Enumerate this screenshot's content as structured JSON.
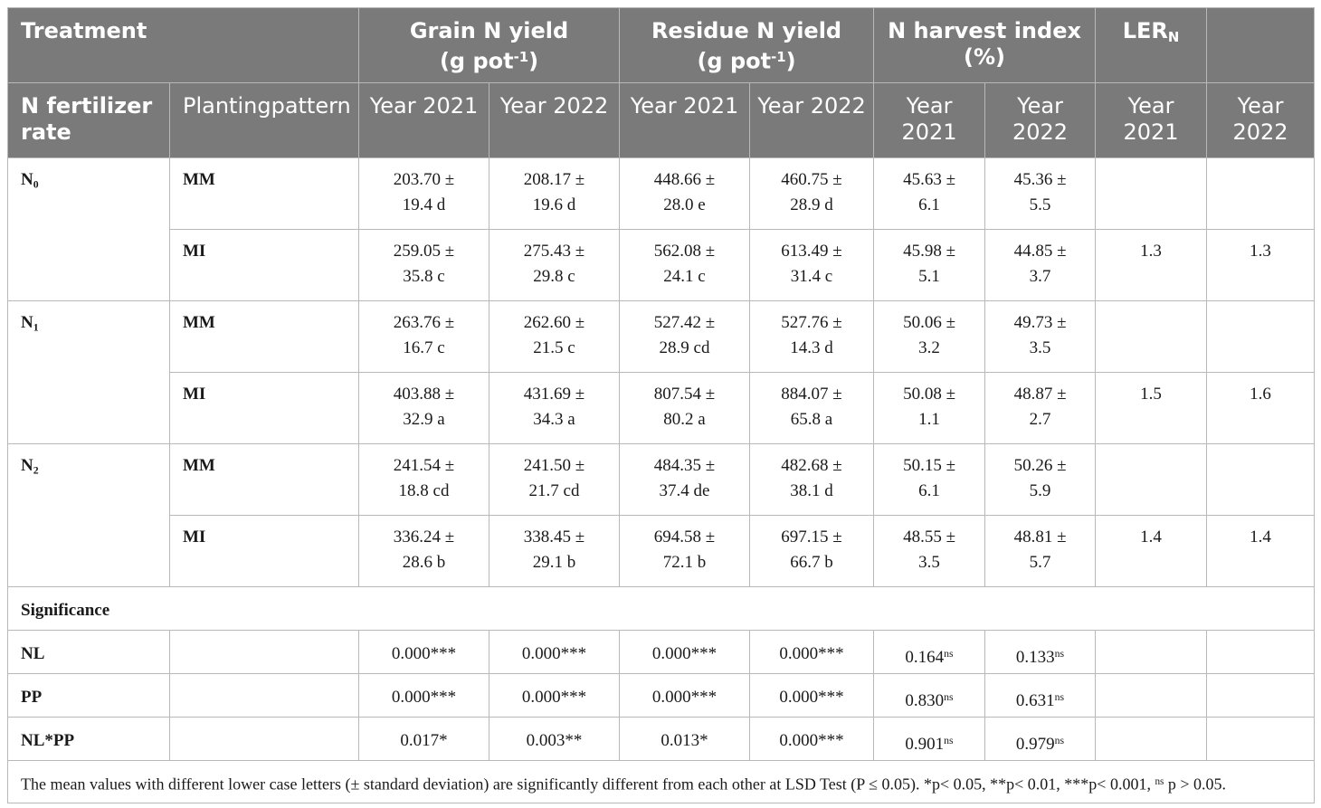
{
  "header": {
    "row1": {
      "treatment": "Treatment",
      "grain_title": "Grain N yield",
      "grain_unit_pre": "(g pot",
      "grain_unit_sup": "-1",
      "grain_unit_post": ")",
      "residue_title": "Residue N yield",
      "residue_unit_pre": "(g pot",
      "residue_unit_sup": "-1",
      "residue_unit_post": ")",
      "nhi_title": "N harvest index",
      "nhi_unit": "(%)",
      "ler_main": "LER",
      "ler_sub": "N"
    },
    "row2": {
      "n_rate": "N fertilizer rate",
      "planting": "Plantingpattern",
      "y1": "Year 2021",
      "y2": "Year 2022",
      "y3": "Year 2021",
      "y4": "Year 2022",
      "y5": "Year 2021",
      "y6": "Year 2022",
      "y7": "Year 2021",
      "y8": "Year 2022"
    }
  },
  "groups": [
    {
      "n_main": "N",
      "n_sub": "0",
      "rows": [
        {
          "pattern": "MM",
          "grain_2021": [
            "203.70 ±",
            "19.4 d"
          ],
          "grain_2022": [
            "208.17 ±",
            "19.6 d"
          ],
          "res_2021": [
            "448.66 ±",
            "28.0 e"
          ],
          "res_2022": [
            "460.75 ±",
            "28.9 d"
          ],
          "nhi_2021": [
            "45.63 ±",
            "6.1"
          ],
          "nhi_2022": [
            "45.36 ±",
            "5.5"
          ],
          "ler_2021": "",
          "ler_2022": ""
        },
        {
          "pattern": "MI",
          "grain_2021": [
            "259.05 ±",
            "35.8 c"
          ],
          "grain_2022": [
            "275.43 ±",
            "29.8 c"
          ],
          "res_2021": [
            "562.08 ±",
            "24.1 c"
          ],
          "res_2022": [
            "613.49 ±",
            "31.4 c"
          ],
          "nhi_2021": [
            "45.98 ±",
            "5.1"
          ],
          "nhi_2022": [
            "44.85 ±",
            "3.7"
          ],
          "ler_2021": "1.3",
          "ler_2022": "1.3"
        }
      ]
    },
    {
      "n_main": "N",
      "n_sub": "1",
      "rows": [
        {
          "pattern": "MM",
          "grain_2021": [
            "263.76 ±",
            "16.7 c"
          ],
          "grain_2022": [
            "262.60 ±",
            "21.5 c"
          ],
          "res_2021": [
            "527.42 ±",
            "28.9 cd"
          ],
          "res_2022": [
            "527.76 ±",
            "14.3 d"
          ],
          "nhi_2021": [
            "50.06 ±",
            "3.2"
          ],
          "nhi_2022": [
            "49.73 ±",
            "3.5"
          ],
          "ler_2021": "",
          "ler_2022": ""
        },
        {
          "pattern": "MI",
          "grain_2021": [
            "403.88 ±",
            "32.9 a"
          ],
          "grain_2022": [
            "431.69 ±",
            "34.3 a"
          ],
          "res_2021": [
            "807.54 ±",
            "80.2 a"
          ],
          "res_2022": [
            "884.07 ±",
            "65.8 a"
          ],
          "nhi_2021": [
            "50.08 ±",
            "1.1"
          ],
          "nhi_2022": [
            "48.87 ±",
            "2.7"
          ],
          "ler_2021": "1.5",
          "ler_2022": "1.6"
        }
      ]
    },
    {
      "n_main": "N",
      "n_sub": "2",
      "rows": [
        {
          "pattern": "MM",
          "grain_2021": [
            "241.54 ±",
            "18.8 cd"
          ],
          "grain_2022": [
            "241.50 ±",
            "21.7 cd"
          ],
          "res_2021": [
            "484.35 ±",
            "37.4 de"
          ],
          "res_2022": [
            "482.68 ±",
            "38.1 d"
          ],
          "nhi_2021": [
            "50.15 ±",
            "6.1"
          ],
          "nhi_2022": [
            "50.26 ±",
            "5.9"
          ],
          "ler_2021": "",
          "ler_2022": ""
        },
        {
          "pattern": "MI",
          "grain_2021": [
            "336.24 ±",
            "28.6 b"
          ],
          "grain_2022": [
            "338.45 ±",
            "29.1 b"
          ],
          "res_2021": [
            "694.58 ±",
            "72.1 b"
          ],
          "res_2022": [
            "697.15 ±",
            "66.7 b"
          ],
          "nhi_2021": [
            "48.55 ±",
            "3.5"
          ],
          "nhi_2022": [
            "48.81 ±",
            "5.7"
          ],
          "ler_2021": "1.4",
          "ler_2022": "1.4"
        }
      ]
    }
  ],
  "significance": {
    "label": "Significance",
    "rows": [
      {
        "label": "NL",
        "g21": "0.000***",
        "g22": "0.000***",
        "r21": "0.000***",
        "r22": "0.000***",
        "h21": "0.164",
        "h21_sup": "ns",
        "h22": "0.133",
        "h22_sup": "ns"
      },
      {
        "label": "PP",
        "g21": "0.000***",
        "g22": "0.000***",
        "r21": "0.000***",
        "r22": "0.000***",
        "h21": "0.830",
        "h21_sup": "ns",
        "h22": "0.631",
        "h22_sup": "ns"
      },
      {
        "label": "NL*PP",
        "g21": "0.017*",
        "g22": "0.003**",
        "r21": "0.013*",
        "r22": "0.000***",
        "h21": "0.901",
        "h21_sup": "ns",
        "h22": "0.979",
        "h22_sup": "ns"
      }
    ]
  },
  "footnote": {
    "text_pre": "The mean values with different lower case letters (± standard deviation) are significantly different from each other at LSD Test (P ≤ 0.05). *p< 0.05, **p< 0.01, ***p< 0.001, ",
    "ns_sup": "ns",
    "text_post": " p > 0.05."
  }
}
